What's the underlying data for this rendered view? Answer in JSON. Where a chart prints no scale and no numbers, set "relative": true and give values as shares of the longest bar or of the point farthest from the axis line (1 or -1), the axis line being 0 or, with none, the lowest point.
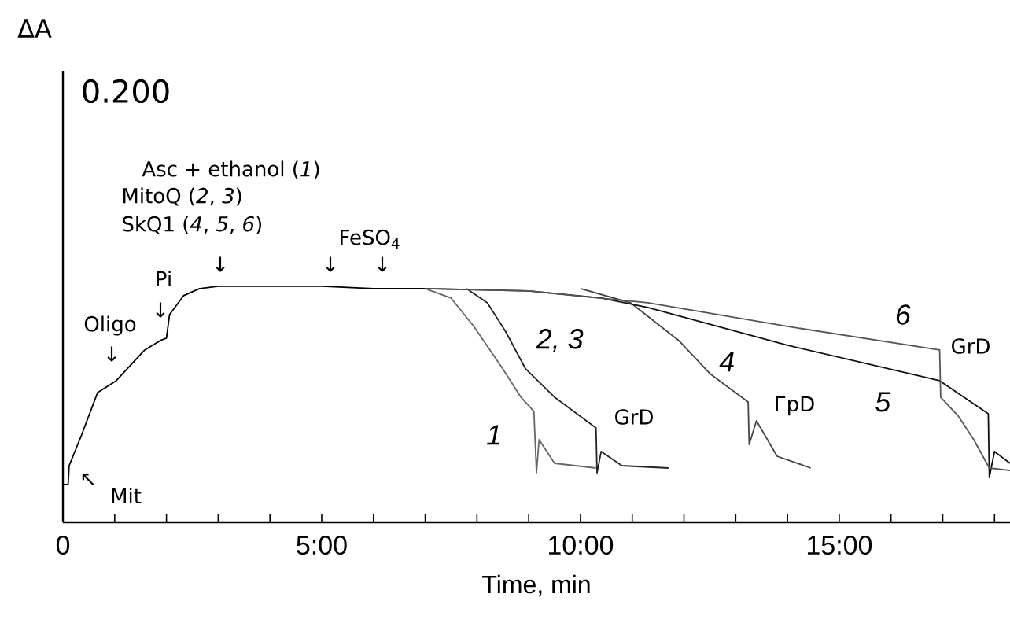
{
  "chart_data": {
    "type": "line",
    "relative": true,
    "xlabel": "Time, min",
    "xlim": [
      0,
      18.3
    ],
    "xticks": [
      0,
      {
        "value": 1,
        "label": null
      },
      {
        "value": 2,
        "label": null
      },
      {
        "value": 3,
        "label": null
      },
      {
        "value": 4,
        "label": null
      },
      {
        "value": 5,
        "label": "5:00"
      },
      {
        "value": 6,
        "label": null
      },
      {
        "value": 7,
        "label": null
      },
      {
        "value": 8,
        "label": null
      },
      {
        "value": 9,
        "label": null
      },
      {
        "value": 10,
        "label": "10:00"
      },
      {
        "value": 11,
        "label": null
      },
      {
        "value": 12,
        "label": null
      },
      {
        "value": 13,
        "label": null
      },
      {
        "value": 14,
        "label": null
      },
      {
        "value": 15,
        "label": "15:00"
      },
      {
        "value": 16,
        "label": null
      },
      {
        "value": 17,
        "label": null
      },
      {
        "value": 18,
        "label": null
      }
    ],
    "grid": false,
    "marker": "none",
    "line_style": "solid",
    "series": [
      {
        "color": "#000000",
        "x": [
          0,
          0.1,
          0.12,
          0.36,
          0.67,
          1.03,
          1.58,
          1.88,
          2.0,
          2.06,
          2.33,
          2.64,
          3.0,
          4.0,
          5.0,
          6.0,
          7.0
        ],
        "values": [
          0.16,
          0.16,
          0.24,
          0.37,
          0.55,
          0.6,
          0.73,
          0.77,
          0.78,
          0.88,
          0.96,
          0.99,
          1.0,
          1.0,
          1.0,
          0.99,
          0.99
        ]
      },
      {
        "name": "1",
        "color": "#666666",
        "x": [
          7.0,
          7.5,
          7.94,
          8.5,
          8.85,
          9.1,
          9.15,
          9.2,
          9.5,
          10.3
        ],
        "values": [
          0.99,
          0.95,
          0.83,
          0.65,
          0.53,
          0.47,
          0.21,
          0.35,
          0.25,
          0.23
        ]
      },
      {
        "name": "2, 3",
        "color": "#222222",
        "x": [
          7.8,
          8.2,
          8.55,
          8.94,
          9.5,
          10.3,
          10.32,
          10.4,
          10.8,
          11.7
        ],
        "values": [
          0.99,
          0.93,
          0.81,
          0.65,
          0.53,
          0.4,
          0.21,
          0.3,
          0.24,
          0.23
        ]
      },
      {
        "name": "4",
        "color": "#444444",
        "x": [
          10.0,
          10.97,
          11.9,
          12.5,
          13.24,
          13.26,
          13.4,
          13.8,
          14.45
        ],
        "values": [
          0.99,
          0.93,
          0.77,
          0.63,
          0.51,
          0.33,
          0.43,
          0.28,
          0.23
        ]
      },
      {
        "name": "5",
        "color": "#111111",
        "x": [
          7.0,
          9.0,
          10.4,
          11.3,
          14.0,
          16.94,
          17.88,
          17.9,
          18.0,
          18.3
        ],
        "values": [
          0.99,
          0.98,
          0.95,
          0.91,
          0.75,
          0.6,
          0.46,
          0.19,
          0.3,
          0.25
        ]
      },
      {
        "name": "6",
        "color": "#555555",
        "x": [
          7.0,
          9.0,
          11.3,
          14.0,
          16.94,
          16.96,
          17.3,
          17.6,
          17.9,
          18.3
        ],
        "values": [
          0.99,
          0.98,
          0.93,
          0.83,
          0.73,
          0.53,
          0.45,
          0.35,
          0.23,
          0.22
        ]
      }
    ],
    "annotations": [
      "ΔA",
      "0.200",
      "Asc + ethanol (*1*)",
      "MitoQ (*2*, *3*)",
      "SkQ1 (*4*, *5*, *6*)",
      "FeSO$_{4}$",
      "↓",
      "↓",
      "↓",
      "Pi",
      "↓",
      "Oligo",
      "↓",
      "↖",
      "Mit",
      "GrD",
      "ГрD",
      "GrD"
    ]
  }
}
